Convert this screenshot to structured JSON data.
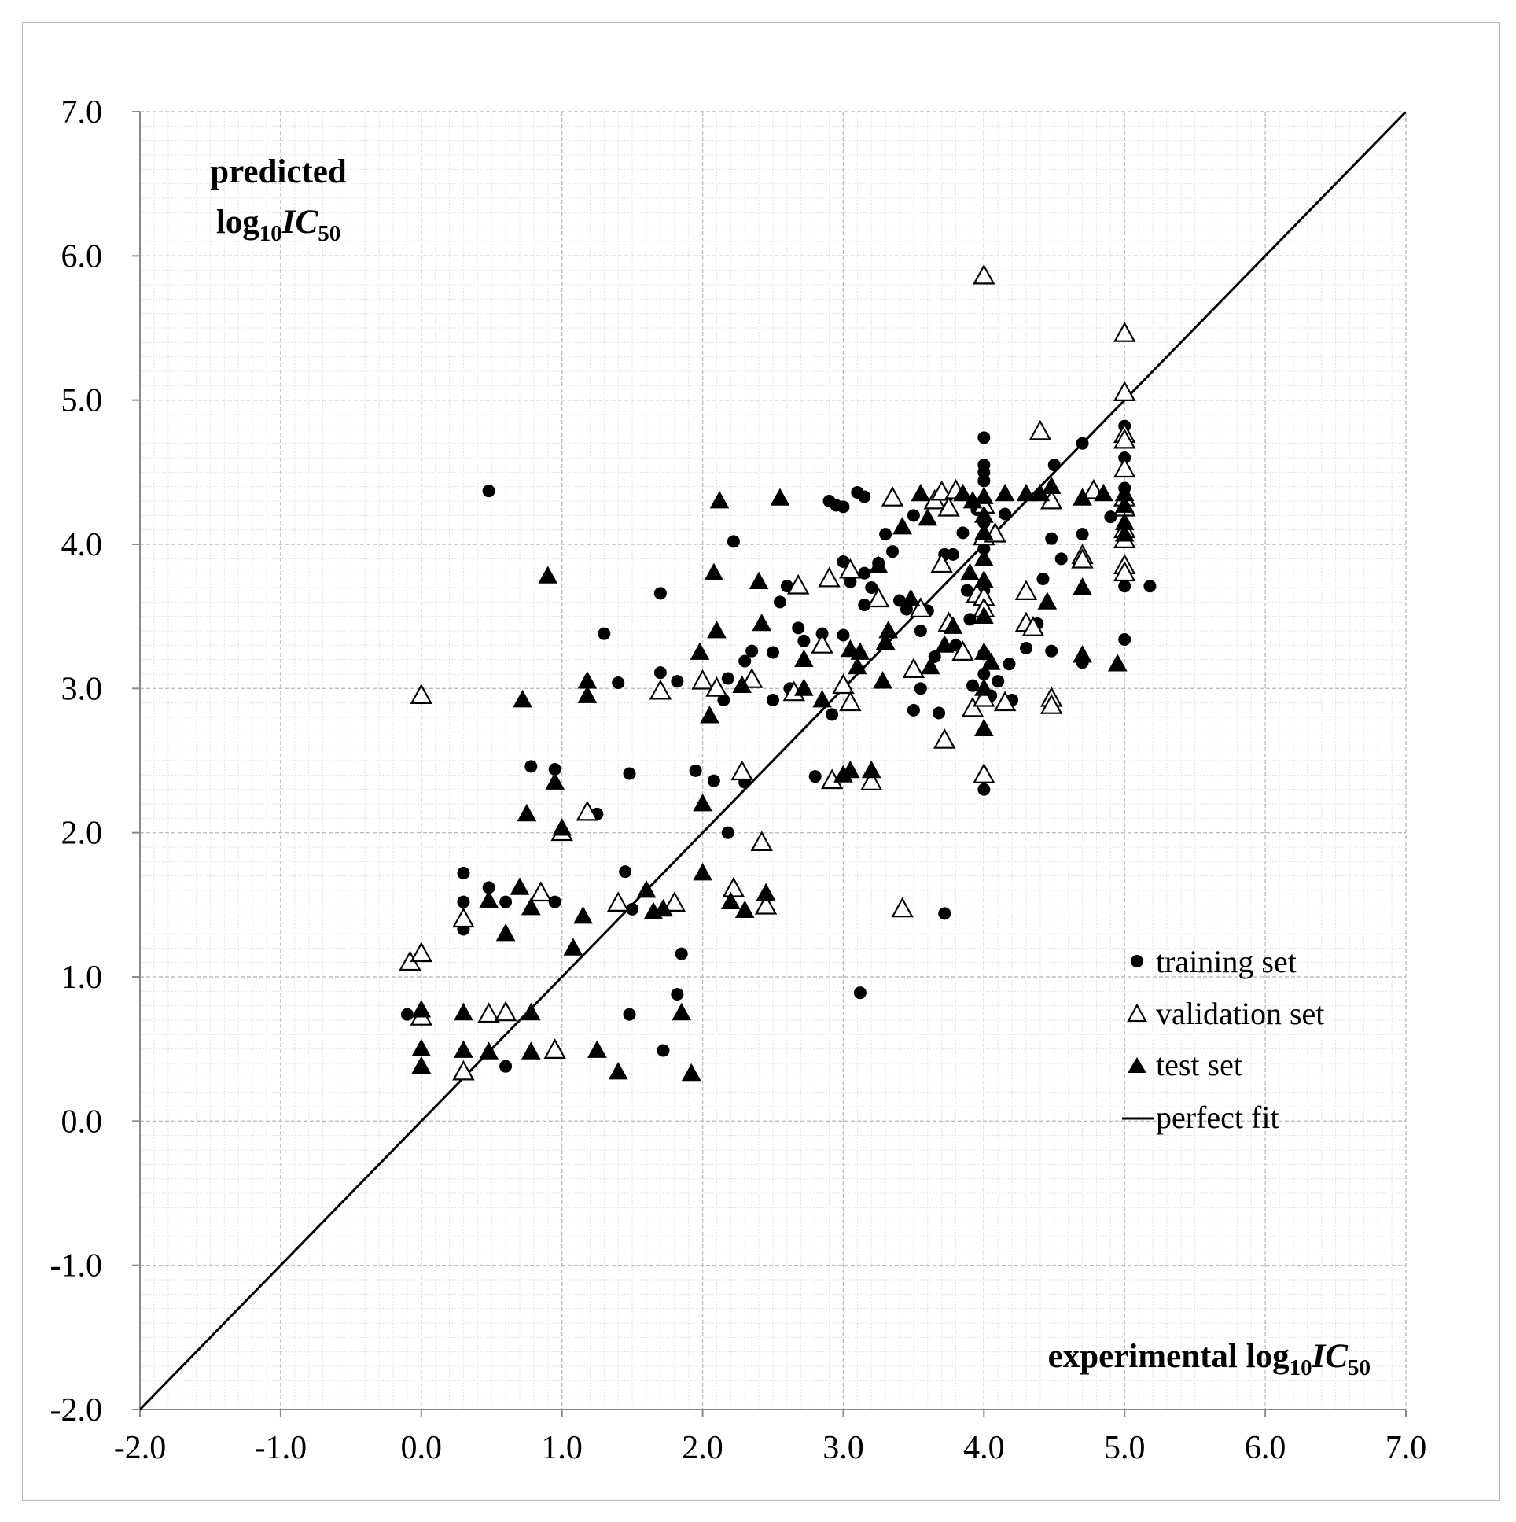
{
  "chart_data": {
    "type": "scatter",
    "title": "",
    "xlabel": "experimental log10IC50",
    "ylabel": "predicted log10IC50",
    "xlabel_parts": {
      "main": "experimental log",
      "sub1": "10",
      "ital": "IC",
      "sub2": "50"
    },
    "ylabel_parts": {
      "line1": "predicted",
      "main": "log",
      "sub1": "10",
      "ital": "IC",
      "sub2": "50"
    },
    "xlim": [
      -2.0,
      7.0
    ],
    "ylim": [
      -2.0,
      7.0
    ],
    "grid": true,
    "legend_position": "bottom-right",
    "x_ticks": [
      {
        "value": -2.0,
        "label": "-2.0"
      },
      {
        "value": -1.0,
        "label": "-1.0"
      },
      {
        "value": 0.0,
        "label": "0.0"
      },
      {
        "value": 1.0,
        "label": "1.0"
      },
      {
        "value": 2.0,
        "label": "2.0"
      },
      {
        "value": 3.0,
        "label": "3.0"
      },
      {
        "value": 4.0,
        "label": "4.0"
      },
      {
        "value": 5.0,
        "label": "5.0"
      },
      {
        "value": 6.0,
        "label": "6.0"
      },
      {
        "value": 7.0,
        "label": "7.0"
      }
    ],
    "y_ticks": [
      {
        "value": -2.0,
        "label": "-2.0"
      },
      {
        "value": -1.0,
        "label": "-1.0"
      },
      {
        "value": 0.0,
        "label": "0.0"
      },
      {
        "value": 1.0,
        "label": "1.0"
      },
      {
        "value": 2.0,
        "label": "2.0"
      },
      {
        "value": 3.0,
        "label": "3.0"
      },
      {
        "value": 4.0,
        "label": "4.0"
      },
      {
        "value": 5.0,
        "label": "5.0"
      },
      {
        "value": 6.0,
        "label": "6.0"
      },
      {
        "value": 7.0,
        "label": "7.0"
      }
    ],
    "series": [
      {
        "name": "training set",
        "marker": "filled-circle",
        "points": [
          [
            -0.1,
            0.74
          ],
          [
            0.48,
            4.37
          ],
          [
            0.3,
            1.72
          ],
          [
            0.3,
            1.52
          ],
          [
            0.3,
            1.33
          ],
          [
            0.48,
            1.62
          ],
          [
            0.6,
            1.52
          ],
          [
            0.6,
            0.38
          ],
          [
            0.78,
            2.46
          ],
          [
            0.95,
            2.44
          ],
          [
            0.95,
            1.52
          ],
          [
            1.0,
            2.0
          ],
          [
            1.25,
            2.13
          ],
          [
            1.3,
            3.38
          ],
          [
            1.4,
            3.04
          ],
          [
            1.45,
            1.73
          ],
          [
            1.48,
            2.41
          ],
          [
            1.5,
            1.47
          ],
          [
            1.48,
            0.74
          ],
          [
            1.7,
            3.66
          ],
          [
            1.7,
            3.11
          ],
          [
            1.72,
            0.49
          ],
          [
            1.82,
            0.88
          ],
          [
            1.85,
            1.16
          ],
          [
            1.82,
            3.05
          ],
          [
            1.95,
            2.43
          ],
          [
            2.08,
            2.36
          ],
          [
            2.18,
            2.0
          ],
          [
            2.22,
            4.02
          ],
          [
            2.18,
            3.07
          ],
          [
            2.15,
            2.92
          ],
          [
            2.3,
            3.19
          ],
          [
            2.35,
            3.26
          ],
          [
            2.3,
            2.35
          ],
          [
            2.5,
            3.25
          ],
          [
            2.5,
            2.92
          ],
          [
            2.55,
            3.6
          ],
          [
            2.6,
            3.71
          ],
          [
            2.62,
            3.0
          ],
          [
            2.68,
            3.42
          ],
          [
            2.72,
            3.33
          ],
          [
            2.8,
            2.39
          ],
          [
            2.85,
            3.38
          ],
          [
            2.9,
            4.3
          ],
          [
            2.95,
            4.27
          ],
          [
            3.0,
            4.26
          ],
          [
            2.92,
            2.82
          ],
          [
            3.0,
            3.37
          ],
          [
            3.0,
            3.88
          ],
          [
            3.05,
            3.74
          ],
          [
            3.1,
            4.36
          ],
          [
            3.15,
            4.33
          ],
          [
            3.12,
            0.89
          ],
          [
            3.15,
            3.8
          ],
          [
            3.15,
            3.58
          ],
          [
            3.2,
            3.7
          ],
          [
            3.25,
            3.87
          ],
          [
            3.3,
            4.07
          ],
          [
            3.35,
            3.95
          ],
          [
            3.4,
            3.61
          ],
          [
            3.45,
            3.55
          ],
          [
            3.5,
            4.2
          ],
          [
            3.5,
            2.85
          ],
          [
            3.55,
            3.0
          ],
          [
            3.55,
            3.4
          ],
          [
            3.6,
            3.54
          ],
          [
            3.65,
            3.22
          ],
          [
            3.68,
            2.83
          ],
          [
            3.72,
            1.44
          ],
          [
            3.72,
            3.93
          ],
          [
            3.78,
            3.93
          ],
          [
            3.8,
            3.3
          ],
          [
            3.85,
            4.08
          ],
          [
            3.88,
            3.68
          ],
          [
            3.9,
            3.48
          ],
          [
            3.92,
            3.02
          ],
          [
            3.95,
            4.24
          ],
          [
            4.0,
            4.74
          ],
          [
            4.0,
            4.55
          ],
          [
            4.0,
            4.5
          ],
          [
            4.0,
            4.44
          ],
          [
            4.0,
            4.3
          ],
          [
            4.0,
            4.15
          ],
          [
            4.0,
            4.06
          ],
          [
            4.0,
            3.97
          ],
          [
            4.0,
            3.68
          ],
          [
            4.0,
            3.5
          ],
          [
            4.0,
            3.24
          ],
          [
            4.0,
            3.1
          ],
          [
            4.0,
            2.3
          ],
          [
            4.05,
            2.95
          ],
          [
            4.1,
            3.05
          ],
          [
            4.15,
            4.21
          ],
          [
            4.18,
            3.17
          ],
          [
            4.2,
            2.92
          ],
          [
            4.3,
            3.28
          ],
          [
            4.38,
            3.45
          ],
          [
            4.42,
            3.76
          ],
          [
            4.48,
            3.26
          ],
          [
            4.48,
            4.04
          ],
          [
            4.5,
            4.55
          ],
          [
            4.55,
            3.9
          ],
          [
            4.7,
            4.7
          ],
          [
            4.7,
            4.07
          ],
          [
            4.7,
            3.18
          ],
          [
            4.9,
            4.19
          ],
          [
            5.0,
            4.82
          ],
          [
            5.0,
            4.6
          ],
          [
            5.0,
            4.39
          ],
          [
            5.0,
            3.71
          ],
          [
            5.0,
            3.34
          ],
          [
            5.18,
            3.71
          ]
        ]
      },
      {
        "name": "validation set",
        "marker": "open-triangle",
        "points": [
          [
            -0.08,
            1.1
          ],
          [
            0.0,
            1.16
          ],
          [
            0.0,
            0.72
          ],
          [
            0.0,
            2.95
          ],
          [
            0.3,
            1.4
          ],
          [
            0.3,
            0.34
          ],
          [
            0.48,
            0.74
          ],
          [
            0.6,
            0.75
          ],
          [
            0.85,
            1.58
          ],
          [
            0.95,
            0.49
          ],
          [
            1.0,
            2.0
          ],
          [
            1.18,
            2.14
          ],
          [
            1.4,
            1.51
          ],
          [
            1.7,
            2.98
          ],
          [
            1.8,
            1.51
          ],
          [
            2.0,
            3.05
          ],
          [
            2.1,
            3.0
          ],
          [
            2.22,
            1.61
          ],
          [
            2.28,
            2.42
          ],
          [
            2.35,
            3.06
          ],
          [
            2.42,
            1.93
          ],
          [
            2.45,
            1.49
          ],
          [
            2.65,
            2.97
          ],
          [
            2.68,
            3.71
          ],
          [
            2.85,
            3.3
          ],
          [
            2.9,
            3.76
          ],
          [
            2.92,
            2.36
          ],
          [
            3.0,
            3.02
          ],
          [
            3.05,
            2.9
          ],
          [
            3.05,
            3.82
          ],
          [
            3.2,
            2.35
          ],
          [
            3.25,
            3.62
          ],
          [
            3.35,
            4.32
          ],
          [
            3.42,
            1.47
          ],
          [
            3.5,
            3.13
          ],
          [
            3.55,
            3.55
          ],
          [
            3.65,
            4.3
          ],
          [
            3.7,
            4.36
          ],
          [
            3.7,
            3.86
          ],
          [
            3.72,
            2.64
          ],
          [
            3.75,
            4.25
          ],
          [
            3.75,
            3.45
          ],
          [
            3.8,
            4.37
          ],
          [
            3.85,
            3.25
          ],
          [
            3.92,
            2.86
          ],
          [
            3.95,
            3.65
          ],
          [
            4.0,
            5.86
          ],
          [
            4.0,
            4.27
          ],
          [
            4.0,
            4.05
          ],
          [
            4.0,
            3.63
          ],
          [
            4.0,
            3.55
          ],
          [
            4.0,
            2.93
          ],
          [
            4.0,
            2.4
          ],
          [
            4.08,
            4.07
          ],
          [
            4.15,
            2.9
          ],
          [
            4.3,
            3.67
          ],
          [
            4.3,
            3.45
          ],
          [
            4.35,
            3.42
          ],
          [
            4.4,
            4.78
          ],
          [
            4.48,
            4.3
          ],
          [
            4.48,
            2.93
          ],
          [
            4.48,
            2.88
          ],
          [
            4.7,
            3.92
          ],
          [
            4.7,
            3.89
          ],
          [
            4.78,
            4.37
          ],
          [
            5.0,
            5.46
          ],
          [
            5.0,
            5.05
          ],
          [
            5.0,
            4.76
          ],
          [
            5.0,
            4.72
          ],
          [
            5.0,
            4.52
          ],
          [
            5.0,
            4.32
          ],
          [
            5.0,
            4.25
          ],
          [
            5.0,
            4.1
          ],
          [
            5.0,
            4.03
          ],
          [
            5.0,
            3.85
          ],
          [
            5.0,
            3.8
          ]
        ]
      },
      {
        "name": "test set",
        "marker": "filled-triangle",
        "points": [
          [
            0.0,
            0.77
          ],
          [
            0.0,
            0.5
          ],
          [
            0.0,
            0.38
          ],
          [
            0.3,
            0.75
          ],
          [
            0.3,
            0.49
          ],
          [
            0.48,
            1.53
          ],
          [
            0.48,
            0.48
          ],
          [
            0.6,
            1.3
          ],
          [
            0.7,
            1.62
          ],
          [
            0.72,
            2.92
          ],
          [
            0.75,
            2.13
          ],
          [
            0.78,
            1.48
          ],
          [
            0.78,
            0.75
          ],
          [
            0.78,
            0.48
          ],
          [
            0.9,
            3.78
          ],
          [
            0.95,
            2.35
          ],
          [
            1.0,
            2.03
          ],
          [
            1.08,
            1.2
          ],
          [
            1.15,
            1.42
          ],
          [
            1.18,
            2.95
          ],
          [
            1.18,
            3.05
          ],
          [
            1.25,
            0.49
          ],
          [
            1.4,
            0.34
          ],
          [
            1.6,
            1.6
          ],
          [
            1.65,
            1.45
          ],
          [
            1.72,
            1.47
          ],
          [
            1.85,
            0.75
          ],
          [
            1.92,
            0.33
          ],
          [
            1.98,
            3.25
          ],
          [
            2.0,
            2.2
          ],
          [
            2.0,
            1.72
          ],
          [
            2.05,
            2.81
          ],
          [
            2.08,
            3.8
          ],
          [
            2.1,
            3.4
          ],
          [
            2.12,
            4.3
          ],
          [
            2.2,
            1.52
          ],
          [
            2.28,
            3.02
          ],
          [
            2.3,
            1.46
          ],
          [
            2.4,
            3.74
          ],
          [
            2.42,
            3.45
          ],
          [
            2.45,
            1.58
          ],
          [
            2.55,
            4.32
          ],
          [
            2.72,
            3.2
          ],
          [
            2.72,
            3.0
          ],
          [
            2.85,
            2.92
          ],
          [
            3.0,
            2.4
          ],
          [
            3.05,
            2.43
          ],
          [
            3.05,
            3.27
          ],
          [
            3.1,
            3.15
          ],
          [
            3.12,
            3.25
          ],
          [
            3.2,
            2.43
          ],
          [
            3.25,
            3.85
          ],
          [
            3.28,
            3.05
          ],
          [
            3.3,
            3.32
          ],
          [
            3.32,
            3.4
          ],
          [
            3.42,
            4.12
          ],
          [
            3.48,
            3.62
          ],
          [
            3.55,
            4.35
          ],
          [
            3.6,
            4.18
          ],
          [
            3.62,
            3.15
          ],
          [
            3.72,
            3.3
          ],
          [
            3.78,
            3.43
          ],
          [
            3.85,
            4.35
          ],
          [
            3.9,
            3.8
          ],
          [
            3.92,
            4.3
          ],
          [
            4.0,
            4.33
          ],
          [
            4.0,
            4.2
          ],
          [
            4.0,
            4.08
          ],
          [
            4.0,
            3.9
          ],
          [
            4.0,
            3.75
          ],
          [
            4.0,
            3.5
          ],
          [
            4.0,
            3.25
          ],
          [
            4.0,
            3.0
          ],
          [
            4.0,
            2.72
          ],
          [
            4.05,
            3.18
          ],
          [
            4.15,
            4.35
          ],
          [
            4.3,
            4.35
          ],
          [
            4.4,
            4.35
          ],
          [
            4.45,
            3.6
          ],
          [
            4.48,
            4.4
          ],
          [
            4.7,
            4.32
          ],
          [
            4.7,
            3.7
          ],
          [
            4.7,
            3.23
          ],
          [
            4.85,
            4.35
          ],
          [
            4.95,
            3.17
          ],
          [
            5.0,
            4.35
          ],
          [
            5.0,
            4.27
          ],
          [
            5.0,
            4.15
          ],
          [
            5.0,
            4.07
          ]
        ]
      },
      {
        "name": "perfect fit",
        "marker": "line",
        "x": [
          -2.0,
          7.0
        ],
        "y": [
          -2.0,
          7.0
        ]
      }
    ]
  }
}
